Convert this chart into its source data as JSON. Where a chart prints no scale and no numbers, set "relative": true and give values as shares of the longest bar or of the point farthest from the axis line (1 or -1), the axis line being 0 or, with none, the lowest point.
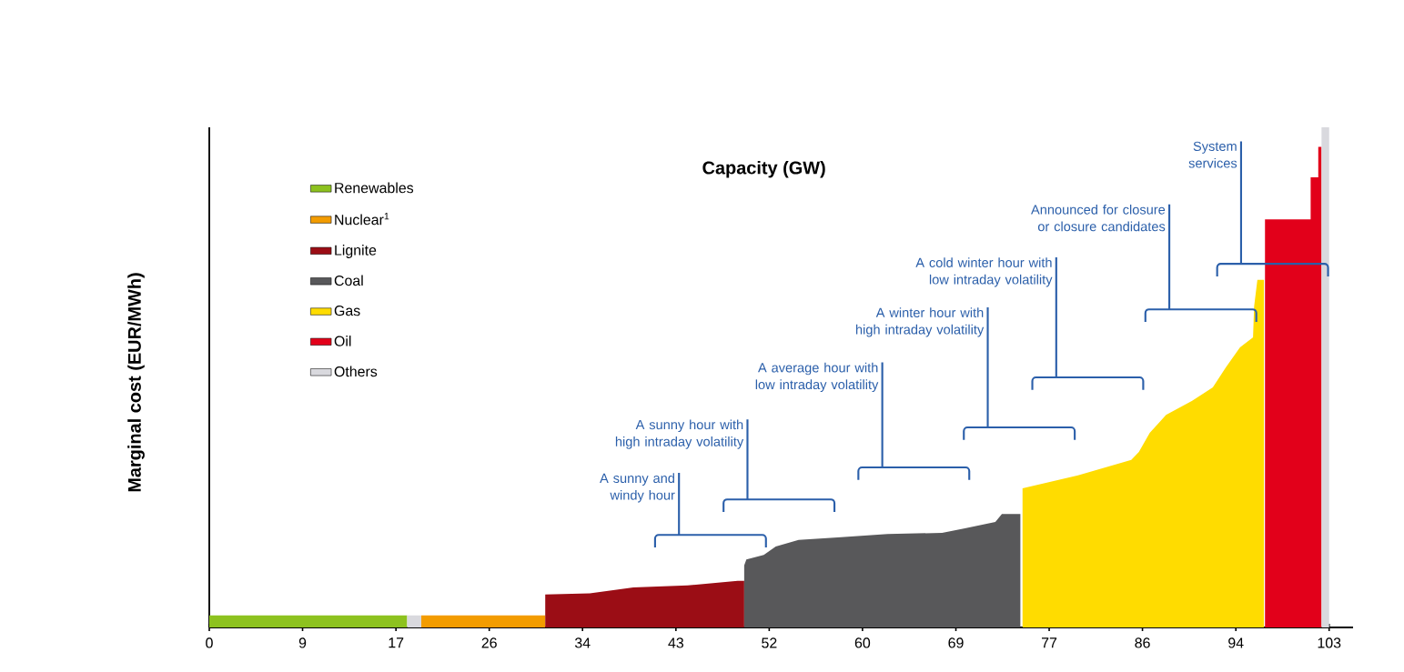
{
  "chart_data": {
    "type": "area",
    "relative": true,
    "xlabel": "Capacity (GW)",
    "ylabel": "Marginal cost (EUR/MWh)",
    "legend": "top left",
    "xlim": [
      0,
      105.2
    ],
    "xticks": [
      0,
      {
        "value": 8.58,
        "label": "9"
      },
      {
        "value": 17.17,
        "label": "17"
      },
      {
        "value": 25.75,
        "label": "26"
      },
      {
        "value": 34.33,
        "label": "34"
      },
      {
        "value": 42.92,
        "label": "43"
      },
      {
        "value": 51.5,
        "label": "52"
      },
      {
        "value": 60.08,
        "label": "60"
      },
      {
        "value": 68.67,
        "label": "69"
      },
      {
        "value": 77.25,
        "label": "77"
      },
      {
        "value": 85.83,
        "label": "86"
      },
      {
        "value": 94.42,
        "label": "94"
      },
      103
    ],
    "series": [
      {
        "name": "Renewables",
        "color": "#8dc21f",
        "x": [
          0,
          18.2
        ],
        "values": [
          0.024,
          0.024
        ]
      },
      {
        "name": "Nuclear$^{1}$",
        "color": "#f39c00",
        "x": [
          19.5,
          30.9
        ],
        "values": [
          0.024,
          0.024
        ]
      },
      {
        "name": "Lignite",
        "color": "#9b0d15",
        "x": [
          30.9,
          35.0,
          39.0,
          44.0,
          48.6,
          49.2
        ],
        "values": [
          0.066,
          0.068,
          0.08,
          0.084,
          0.093,
          0.093
        ]
      },
      {
        "name": "Coal",
        "color": "#58585a",
        "x": [
          49.2,
          49.4,
          51.0,
          52.1,
          54.2,
          57.8,
          62.4,
          67.4,
          69.5,
          72.3,
          72.9,
          74.6
        ],
        "values": [
          0.124,
          0.136,
          0.145,
          0.162,
          0.175,
          0.18,
          0.187,
          0.189,
          0.198,
          0.211,
          0.227,
          0.227
        ]
      },
      {
        "name": "Gas",
        "color": "#ffdc00",
        "x": [
          74.8,
          79.9,
          84.8,
          85.5,
          86.5,
          88.0,
          90.4,
          92.3,
          93.5,
          94.8,
          96.0,
          96.1,
          96.4,
          97.0
        ],
        "values": [
          0.278,
          0.304,
          0.335,
          0.351,
          0.389,
          0.425,
          0.453,
          0.48,
          0.52,
          0.56,
          0.58,
          0.642,
          0.695,
          0.695
        ]
      },
      {
        "name": "Oil",
        "color": "#e2001a",
        "x": [
          97.1,
          101.3,
          101.3,
          102.0,
          102.0,
          102.3
        ],
        "values": [
          0.816,
          0.816,
          0.9,
          0.9,
          0.961,
          0.961
        ]
      },
      {
        "name": "Others",
        "color": "#d9d9de",
        "x": [
          18.2,
          19.5,
          19.5,
          102.3,
          102.3,
          103
        ],
        "values": [
          0.024,
          0.024,
          0,
          0,
          1,
          1
        ]
      }
    ],
    "annotations": [
      "A sunny and windy hour",
      "A sunny hour with high intraday volatility",
      "A average hour with low intraday volatility",
      "A winter hour with high intraday volatility",
      "A cold winter hour with low intraday volatility",
      "Announced for closure or closure candidates",
      "System services"
    ]
  }
}
